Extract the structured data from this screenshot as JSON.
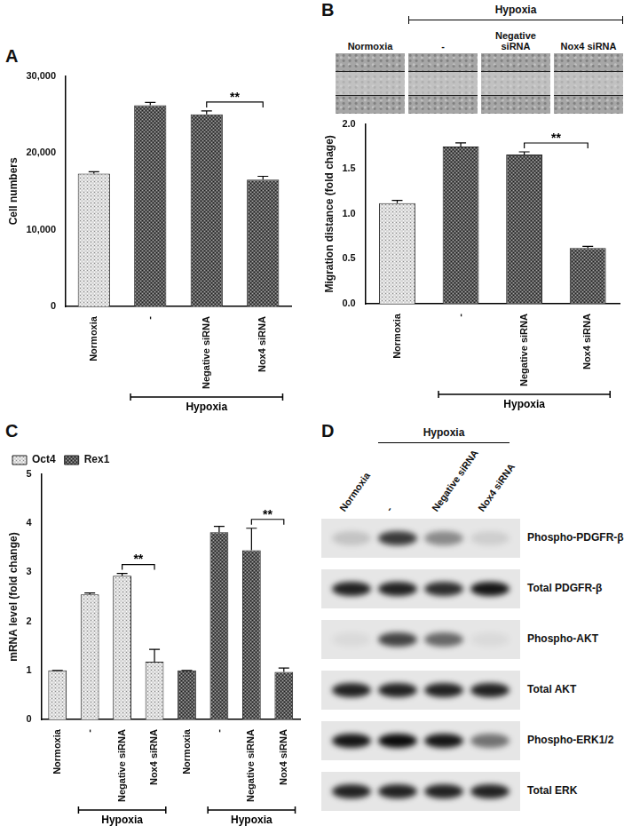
{
  "panel_labels": [
    "A",
    "B",
    "C",
    "D"
  ],
  "chart_data": [
    {
      "type": "bar",
      "y_label": "Cell numbers",
      "categories": [
        "Normoxia",
        "-",
        "Negative siRNA",
        "Nox4 siRNA"
      ],
      "values": [
        17300,
        26200,
        25000,
        16500
      ],
      "errors": [
        250,
        350,
        450,
        450
      ],
      "colors": [
        "#d9d9d9",
        "#5a5a5a",
        "#5a5a5a",
        "#5a5a5a"
      ],
      "ylim": [
        0,
        30000
      ],
      "yticks": [
        0,
        {
          "value": 10000,
          "label": "10,000"
        },
        {
          "value": 20000,
          "label": "20,000"
        },
        {
          "value": 30000,
          "label": "30,000"
        }
      ],
      "grid": false,
      "groups": [
        {
          "label": "Hypoxia",
          "from": 1,
          "to": 3
        }
      ],
      "significance": [
        {
          "from": 2,
          "to": 3,
          "label": "**"
        }
      ]
    },
    {
      "type": "bar",
      "y_label": "Migration distance (fold chage)",
      "categories": [
        "Normoxia",
        "-",
        "Negative siRNA",
        "Nox4 siRNA"
      ],
      "values": [
        1.12,
        1.75,
        1.66,
        0.62
      ],
      "errors": [
        0.03,
        0.04,
        0.03,
        0.02
      ],
      "colors": [
        "#d9d9d9",
        "#5a5a5a",
        "#5a5a5a",
        "#5a5a5a"
      ],
      "ylim": [
        0,
        2
      ],
      "yticks": [
        {
          "value": 0,
          "label": "0.0"
        },
        {
          "value": 0.5,
          "label": "0.5"
        },
        {
          "value": 1,
          "label": "1.0"
        },
        {
          "value": 1.5,
          "label": "1.5"
        },
        {
          "value": 2,
          "label": "2.0"
        }
      ],
      "grid": false,
      "groups": [
        {
          "label": "Hypoxia",
          "from": 1,
          "to": 3
        }
      ],
      "significance": [
        {
          "from": 2,
          "to": 3,
          "label": "**"
        }
      ]
    },
    {
      "type": "bar",
      "y_label": "mRNA level (fold change)",
      "categories": [
        "Normoxia",
        "-",
        "Negative siRNA",
        "Nox4 siRNA",
        "Normoxia",
        "-",
        "Negative siRNA",
        "Nox4 siRNA"
      ],
      "series": [
        {
          "name": "Oct4",
          "color": "#d9d9d9",
          "values": [
            1,
            2.55,
            2.93,
            1.18,
            null,
            null,
            null,
            null
          ],
          "errors": [
            0,
            0.03,
            0.05,
            0.25,
            null,
            null,
            null,
            null
          ]
        },
        {
          "name": "Rex1",
          "color": "#5a5a5a",
          "values": [
            null,
            null,
            null,
            null,
            1,
            3.82,
            3.45,
            0.97
          ],
          "errors": [
            null,
            null,
            null,
            null,
            0,
            0.12,
            0.45,
            0.08
          ]
        }
      ],
      "ylim": [
        0,
        5
      ],
      "yticks": [
        0,
        1,
        2,
        3,
        4,
        5
      ],
      "grid": false,
      "legend": "upper left",
      "groups": [
        {
          "label": "Hypoxia",
          "from": 1,
          "to": 3
        },
        {
          "label": "Hypoxia",
          "from": 5,
          "to": 7
        }
      ],
      "significance": [
        {
          "from": 2,
          "to": 3,
          "label": "**"
        },
        {
          "from": 6,
          "to": 7,
          "label": "**"
        }
      ]
    }
  ],
  "wound_images": {
    "title": "Hypoxia",
    "title_span": [
      1,
      3
    ],
    "labels": [
      "Normoxia",
      "-",
      "Negative siRNA",
      "Nox4 siRNA"
    ]
  },
  "western_blot": {
    "title": "Hypoxia",
    "title_span": [
      1,
      3
    ],
    "lanes": [
      "Normoxia",
      "-",
      "Negative siRNA",
      "Nox4 siRNA"
    ],
    "rows": [
      {
        "label": "Phospho-PDGFR-β",
        "intensity": [
          0.15,
          0.75,
          0.4,
          0.1
        ]
      },
      {
        "label": "Total PDGFR-β",
        "intensity": [
          0.85,
          0.85,
          0.8,
          0.9
        ]
      },
      {
        "label": "Phospho-AKT",
        "intensity": [
          0.05,
          0.7,
          0.55,
          0.05
        ]
      },
      {
        "label": "Total AKT",
        "intensity": [
          0.85,
          0.85,
          0.85,
          0.85
        ]
      },
      {
        "label": "Phospho-ERK1/2",
        "intensity": [
          0.9,
          0.95,
          0.9,
          0.5
        ]
      },
      {
        "label": "Total ERK",
        "intensity": [
          0.85,
          0.85,
          0.85,
          0.85
        ]
      }
    ]
  }
}
